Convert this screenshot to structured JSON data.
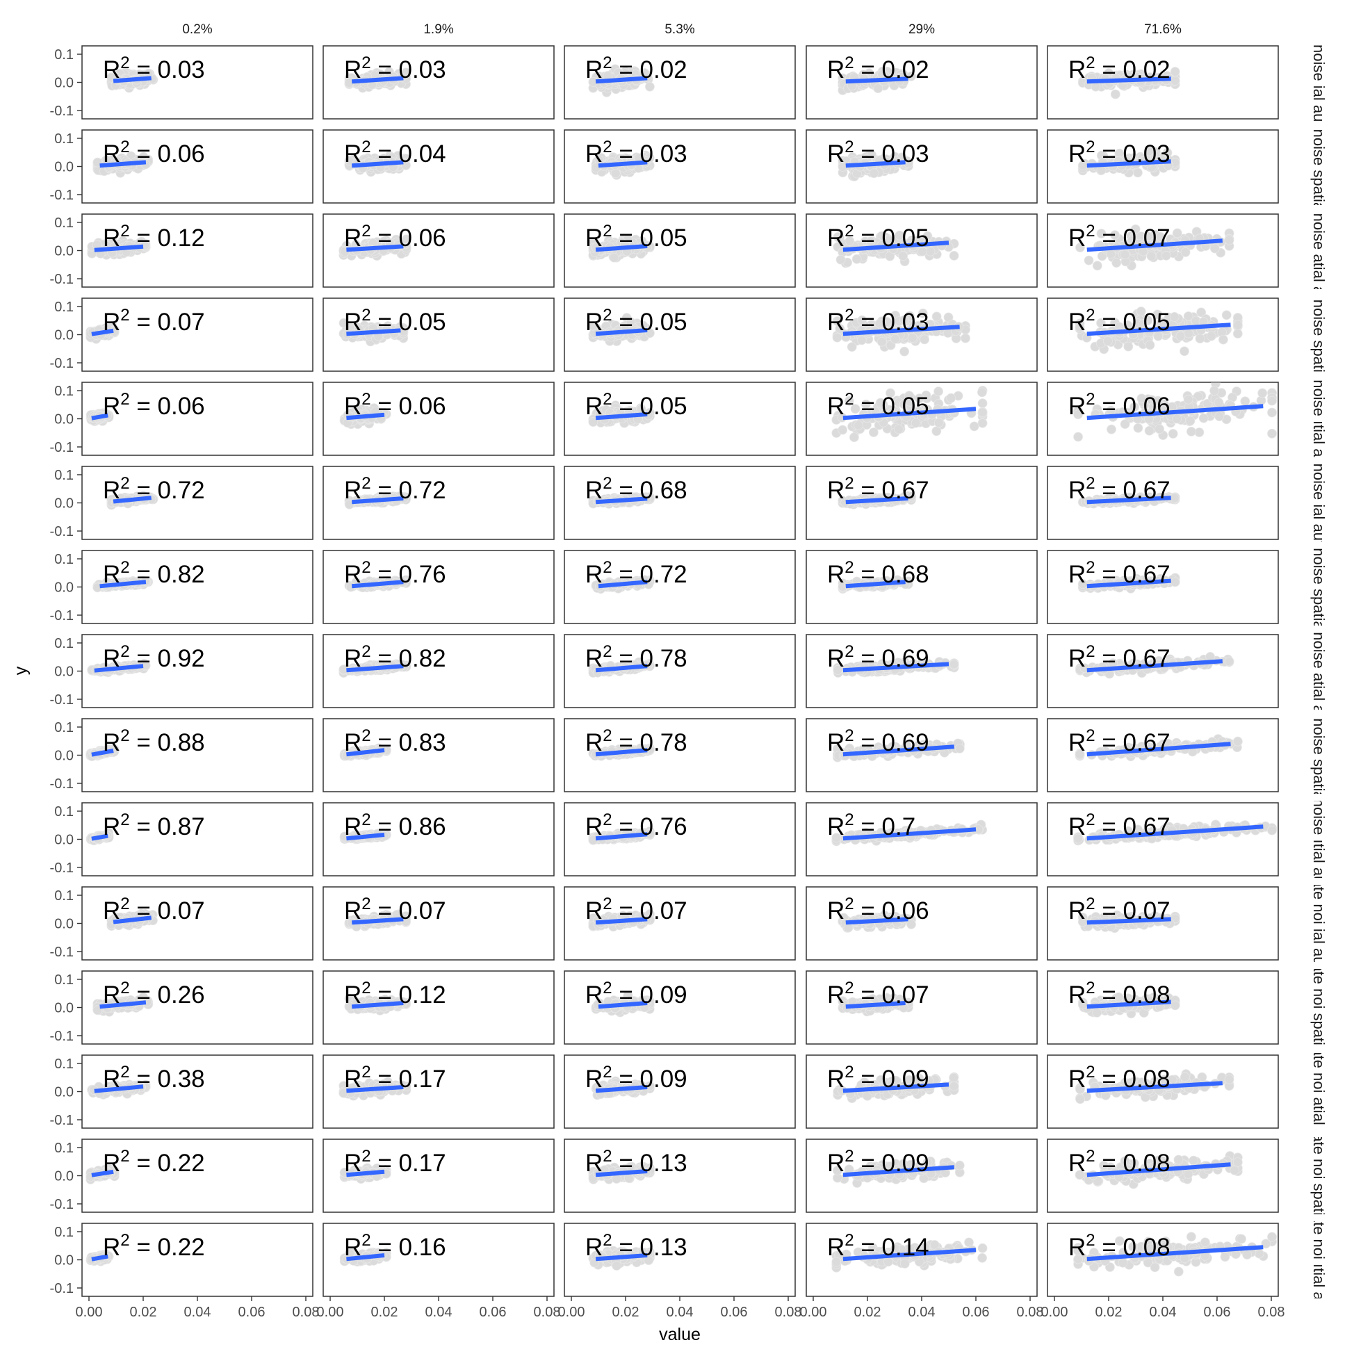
{
  "chart_data": {
    "type": "scatter",
    "facet": "grid",
    "xlabel": "value",
    "ylabel": "y",
    "xlim": [
      0,
      0.08
    ],
    "ylim": [
      -0.1,
      0.1
    ],
    "x_ticks": [
      0.0,
      0.02,
      0.04,
      0.06,
      0.08
    ],
    "x_tick_labels": [
      "0.00",
      "0.02",
      "0.04",
      "0.06",
      "0.08"
    ],
    "y_ticks": [
      0.1,
      0.0,
      -0.1
    ],
    "y_tick_labels": [
      "0.1",
      "0.0",
      "-0.1"
    ],
    "grid": false,
    "point_color": "#BEBEBE",
    "line_color": "#3366FF",
    "columns": [
      "0.2%",
      "1.9%",
      "5.3%",
      "29%",
      "71.6%"
    ],
    "rows": [
      "High noise ial autocor",
      "High noise spatial aut",
      "High noise atial autoc",
      "High noise spatial au",
      "High noise ıtial autocc",
      "Low noise ial autocor",
      "Low noise spatial aut",
      "Low noise atial autoc",
      "Low noise spatial au",
      "Low noise ıtial autocc",
      "oderate noi ial autocor",
      "oderate noi spatial aut",
      "oderate noi atial autoc",
      "oderate noi spatial au",
      "oderate noi ıtial autocc"
    ],
    "r2_prefix": "R",
    "r2_exponent": "2",
    "r2_equals": "=",
    "r2": [
      [
        "0.03",
        "0.03",
        "0.02",
        "0.02",
        "0.02"
      ],
      [
        "0.06",
        "0.04",
        "0.03",
        "0.03",
        "0.03"
      ],
      [
        "0.12",
        "0.06",
        "0.05",
        "0.05",
        "0.07"
      ],
      [
        "0.07",
        "0.05",
        "0.05",
        "0.03",
        "0.05"
      ],
      [
        "0.06",
        "0.06",
        "0.05",
        "0.05",
        "0.06"
      ],
      [
        "0.72",
        "0.72",
        "0.68",
        "0.67",
        "0.67"
      ],
      [
        "0.82",
        "0.76",
        "0.72",
        "0.68",
        "0.67"
      ],
      [
        "0.92",
        "0.82",
        "0.78",
        "0.69",
        "0.67"
      ],
      [
        "0.88",
        "0.83",
        "0.78",
        "0.69",
        "0.67"
      ],
      [
        "0.87",
        "0.86",
        "0.76",
        "0.7",
        "0.67"
      ],
      [
        "0.07",
        "0.07",
        "0.07",
        "0.06",
        "0.07"
      ],
      [
        "0.26",
        "0.12",
        "0.09",
        "0.07",
        "0.08"
      ],
      [
        "0.38",
        "0.17",
        "0.09",
        "0.09",
        "0.08"
      ],
      [
        "0.22",
        "0.17",
        "0.13",
        "0.09",
        "0.08"
      ],
      [
        "0.22",
        "0.16",
        "0.13",
        "0.14",
        "0.08"
      ]
    ],
    "fit_x_range": [
      [
        [
          0.009,
          0.023
        ],
        [
          0.008,
          0.027
        ],
        [
          0.009,
          0.028
        ],
        [
          0.012,
          0.035
        ],
        [
          0.012,
          0.043
        ]
      ],
      [
        [
          0.004,
          0.021
        ],
        [
          0.008,
          0.027
        ],
        [
          0.01,
          0.028
        ],
        [
          0.012,
          0.034
        ],
        [
          0.012,
          0.043
        ]
      ],
      [
        [
          0.002,
          0.02
        ],
        [
          0.006,
          0.027
        ],
        [
          0.009,
          0.028
        ],
        [
          0.011,
          0.05
        ],
        [
          0.012,
          0.062
        ]
      ],
      [
        [
          0.001,
          0.009
        ],
        [
          0.006,
          0.026
        ],
        [
          0.009,
          0.028
        ],
        [
          0.011,
          0.054
        ],
        [
          0.012,
          0.065
        ]
      ],
      [
        [
          0.001,
          0.007
        ],
        [
          0.006,
          0.02
        ],
        [
          0.009,
          0.028
        ],
        [
          0.011,
          0.06
        ],
        [
          0.012,
          0.077
        ]
      ],
      [
        [
          0.009,
          0.023
        ],
        [
          0.008,
          0.027
        ],
        [
          0.009,
          0.028
        ],
        [
          0.012,
          0.035
        ],
        [
          0.012,
          0.043
        ]
      ],
      [
        [
          0.004,
          0.021
        ],
        [
          0.008,
          0.027
        ],
        [
          0.01,
          0.028
        ],
        [
          0.012,
          0.034
        ],
        [
          0.012,
          0.043
        ]
      ],
      [
        [
          0.002,
          0.02
        ],
        [
          0.006,
          0.027
        ],
        [
          0.009,
          0.028
        ],
        [
          0.011,
          0.05
        ],
        [
          0.012,
          0.062
        ]
      ],
      [
        [
          0.001,
          0.009
        ],
        [
          0.006,
          0.02
        ],
        [
          0.009,
          0.028
        ],
        [
          0.011,
          0.052
        ],
        [
          0.012,
          0.065
        ]
      ],
      [
        [
          0.001,
          0.007
        ],
        [
          0.006,
          0.02
        ],
        [
          0.009,
          0.028
        ],
        [
          0.011,
          0.06
        ],
        [
          0.012,
          0.077
        ]
      ],
      [
        [
          0.009,
          0.023
        ],
        [
          0.008,
          0.027
        ],
        [
          0.009,
          0.028
        ],
        [
          0.012,
          0.035
        ],
        [
          0.012,
          0.043
        ]
      ],
      [
        [
          0.004,
          0.021
        ],
        [
          0.008,
          0.027
        ],
        [
          0.01,
          0.028
        ],
        [
          0.012,
          0.034
        ],
        [
          0.012,
          0.043
        ]
      ],
      [
        [
          0.002,
          0.02
        ],
        [
          0.006,
          0.027
        ],
        [
          0.009,
          0.028
        ],
        [
          0.011,
          0.05
        ],
        [
          0.012,
          0.062
        ]
      ],
      [
        [
          0.001,
          0.009
        ],
        [
          0.006,
          0.02
        ],
        [
          0.009,
          0.028
        ],
        [
          0.011,
          0.052
        ],
        [
          0.012,
          0.065
        ]
      ],
      [
        [
          0.001,
          0.007
        ],
        [
          0.006,
          0.02
        ],
        [
          0.009,
          0.028
        ],
        [
          0.011,
          0.06
        ],
        [
          0.012,
          0.077
        ]
      ]
    ],
    "fit_y_range": [
      [
        [
          0.005,
          0.015
        ],
        [
          0.003,
          0.015
        ],
        [
          0.003,
          0.015
        ],
        [
          0.003,
          0.013
        ],
        [
          0.003,
          0.013
        ]
      ],
      [
        [
          0.003,
          0.015
        ],
        [
          0.003,
          0.015
        ],
        [
          0.003,
          0.015
        ],
        [
          0.003,
          0.015
        ],
        [
          0.003,
          0.018
        ]
      ],
      [
        [
          0.002,
          0.014
        ],
        [
          0.003,
          0.015
        ],
        [
          0.003,
          0.016
        ],
        [
          0.003,
          0.028
        ],
        [
          0.003,
          0.035
        ]
      ],
      [
        [
          0.002,
          0.014
        ],
        [
          0.003,
          0.015
        ],
        [
          0.003,
          0.016
        ],
        [
          0.003,
          0.028
        ],
        [
          0.003,
          0.035
        ]
      ],
      [
        [
          0.002,
          0.012
        ],
        [
          0.003,
          0.014
        ],
        [
          0.003,
          0.016
        ],
        [
          0.003,
          0.035
        ],
        [
          0.003,
          0.045
        ]
      ],
      [
        [
          0.005,
          0.018
        ],
        [
          0.003,
          0.016
        ],
        [
          0.003,
          0.015
        ],
        [
          0.003,
          0.016
        ],
        [
          0.003,
          0.018
        ]
      ],
      [
        [
          0.003,
          0.018
        ],
        [
          0.003,
          0.018
        ],
        [
          0.003,
          0.018
        ],
        [
          0.003,
          0.018
        ],
        [
          0.003,
          0.022
        ]
      ],
      [
        [
          0.002,
          0.018
        ],
        [
          0.003,
          0.018
        ],
        [
          0.003,
          0.018
        ],
        [
          0.003,
          0.025
        ],
        [
          0.003,
          0.035
        ]
      ],
      [
        [
          0.002,
          0.016
        ],
        [
          0.003,
          0.018
        ],
        [
          0.003,
          0.018
        ],
        [
          0.003,
          0.03
        ],
        [
          0.003,
          0.04
        ]
      ],
      [
        [
          0.002,
          0.012
        ],
        [
          0.003,
          0.016
        ],
        [
          0.003,
          0.018
        ],
        [
          0.003,
          0.035
        ],
        [
          0.003,
          0.045
        ]
      ],
      [
        [
          0.005,
          0.02
        ],
        [
          0.003,
          0.015
        ],
        [
          0.003,
          0.015
        ],
        [
          0.003,
          0.015
        ],
        [
          0.003,
          0.015
        ]
      ],
      [
        [
          0.003,
          0.018
        ],
        [
          0.003,
          0.016
        ],
        [
          0.003,
          0.016
        ],
        [
          0.003,
          0.016
        ],
        [
          0.003,
          0.02
        ]
      ],
      [
        [
          0.002,
          0.018
        ],
        [
          0.003,
          0.016
        ],
        [
          0.003,
          0.016
        ],
        [
          0.003,
          0.025
        ],
        [
          0.003,
          0.03
        ]
      ],
      [
        [
          0.002,
          0.014
        ],
        [
          0.003,
          0.014
        ],
        [
          0.003,
          0.016
        ],
        [
          0.003,
          0.03
        ],
        [
          0.003,
          0.04
        ]
      ],
      [
        [
          0.002,
          0.012
        ],
        [
          0.003,
          0.016
        ],
        [
          0.003,
          0.016
        ],
        [
          0.003,
          0.035
        ],
        [
          0.003,
          0.045
        ]
      ]
    ],
    "cloud_y_spread": [
      [
        0.02,
        0.02,
        0.022,
        0.022,
        0.022
      ],
      [
        0.02,
        0.022,
        0.022,
        0.025,
        0.025
      ],
      [
        0.018,
        0.022,
        0.025,
        0.04,
        0.045
      ],
      [
        0.012,
        0.02,
        0.025,
        0.045,
        0.05
      ],
      [
        0.01,
        0.018,
        0.022,
        0.055,
        0.06
      ],
      [
        0.008,
        0.008,
        0.008,
        0.008,
        0.008
      ],
      [
        0.007,
        0.008,
        0.008,
        0.009,
        0.01
      ],
      [
        0.007,
        0.008,
        0.009,
        0.012,
        0.014
      ],
      [
        0.006,
        0.007,
        0.009,
        0.012,
        0.014
      ],
      [
        0.005,
        0.006,
        0.008,
        0.012,
        0.016
      ],
      [
        0.014,
        0.015,
        0.016,
        0.016,
        0.016
      ],
      [
        0.013,
        0.015,
        0.016,
        0.018,
        0.02
      ],
      [
        0.012,
        0.015,
        0.016,
        0.022,
        0.026
      ],
      [
        0.01,
        0.012,
        0.016,
        0.025,
        0.03
      ],
      [
        0.008,
        0.012,
        0.016,
        0.03,
        0.036
      ]
    ]
  }
}
